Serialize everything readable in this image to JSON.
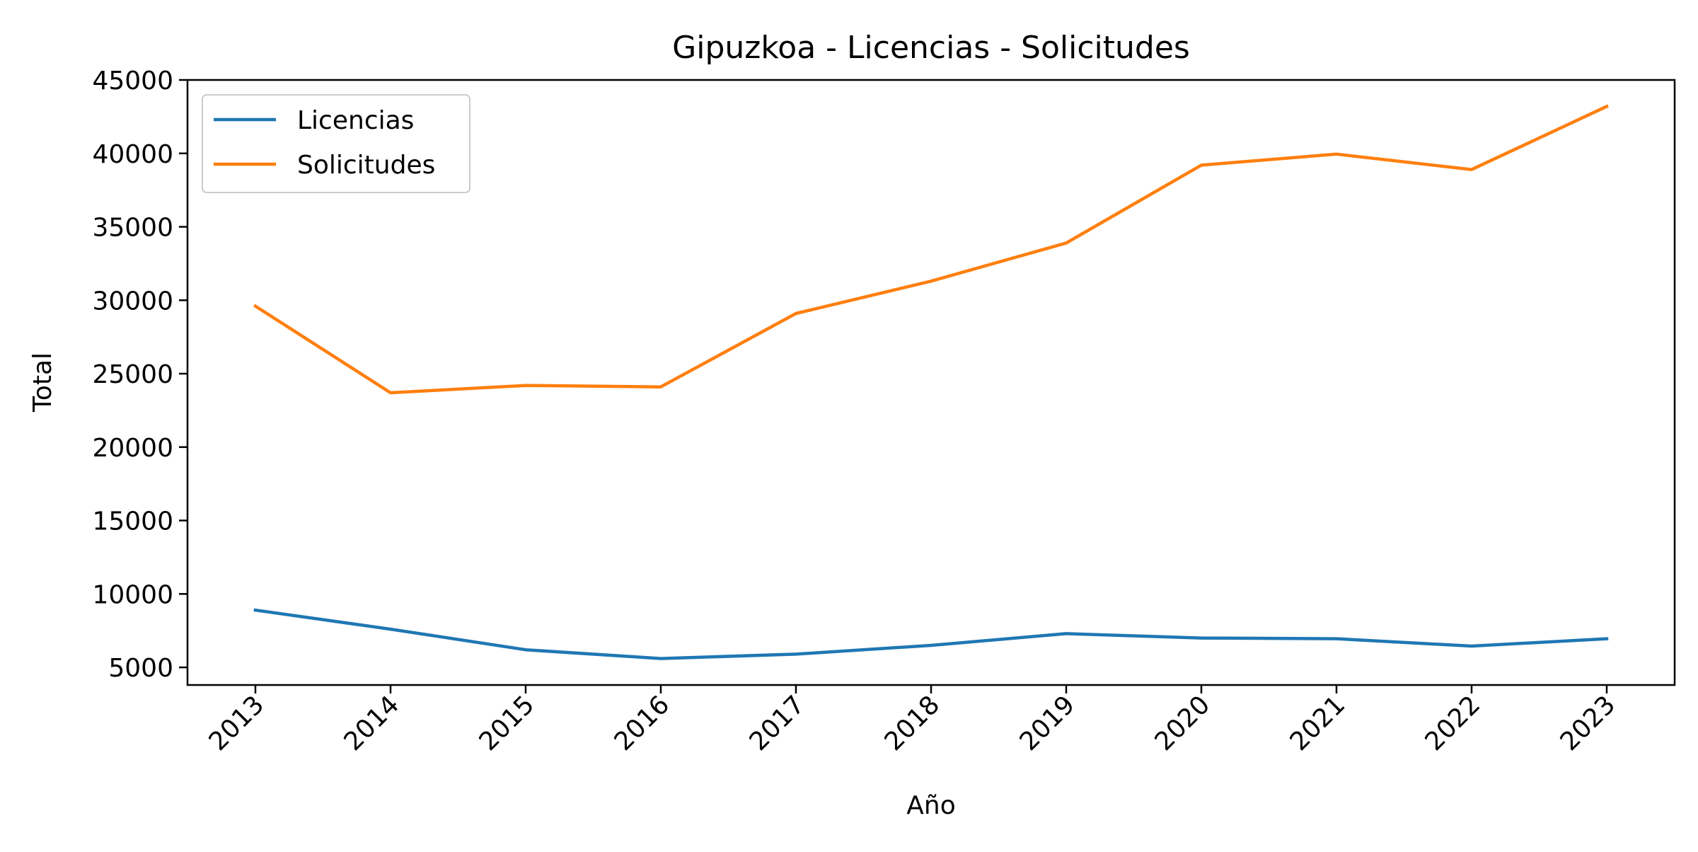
{
  "chart_data": {
    "type": "line",
    "title": "Gipuzkoa - Licencias - Solicitudes",
    "xlabel": "Año",
    "ylabel": "Total",
    "categories": [
      "2013",
      "2014",
      "2015",
      "2016",
      "2017",
      "2018",
      "2019",
      "2020",
      "2021",
      "2022",
      "2023"
    ],
    "ylim": [
      3800,
      45000
    ],
    "yticks": [
      5000,
      10000,
      15000,
      20000,
      25000,
      30000,
      35000,
      40000,
      45000
    ],
    "ytick_labels": [
      "5000",
      "10000",
      "15000",
      "20000",
      "25000",
      "30000",
      "35000",
      "40000",
      "45000"
    ],
    "grid": false,
    "legend_position": "top-left",
    "series": [
      {
        "name": "Licencias",
        "color": "#1f77b4",
        "values": [
          8900,
          7600,
          6200,
          5600,
          5900,
          6500,
          7300,
          7000,
          6950,
          6450,
          6950
        ]
      },
      {
        "name": "Solicitudes",
        "color": "#ff7f0e",
        "values": [
          29600,
          23700,
          24200,
          24100,
          29100,
          31300,
          33900,
          39200,
          39950,
          38900,
          43200
        ]
      }
    ]
  }
}
